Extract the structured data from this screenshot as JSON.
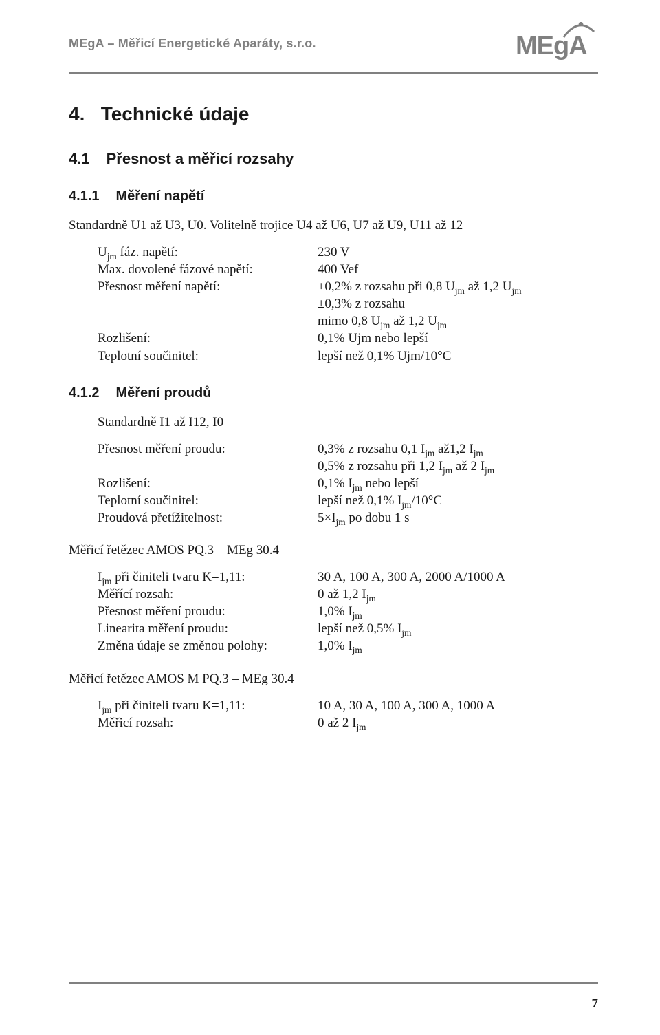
{
  "header": {
    "company": "MEgA – Měřicí Energetické Aparáty, s.r.o.",
    "logo_text": "MEgA",
    "color_gray": "#808080"
  },
  "h2": {
    "num": "4.",
    "title": "Technické údaje"
  },
  "h3": {
    "num": "4.1",
    "title": "Přesnost a měřicí rozsahy"
  },
  "s411": {
    "num": "4.1.1",
    "title": "Měření napětí",
    "intro": "Standardně U1 až U3, U0. Volitelně trojice U4 až U6, U7 až U9, U11 až 12",
    "rows": {
      "r1l": "U<sub>jm</sub> fáz. napětí:",
      "r1v": "230 V",
      "r2l": "Max. dovolené fázové napětí:",
      "r2v": "400 Vef",
      "r3l": "Přesnost měření napětí:",
      "r3v": "±0,2% z rozsahu při 0,8 U<sub>jm</sub> až 1,2 U<sub>jm</sub>",
      "r4v": "±0,3% z rozsahu",
      "r5v": "mimo 0,8 U<sub>jm</sub> až 1,2 U<sub>jm</sub>",
      "r6l": "Rozlišení:",
      "r6v": "0,1% Ujm nebo lepší",
      "r7l": "Teplotní součinitel:",
      "r7v": "lepší než 0,1% Ujm/10°C"
    }
  },
  "s412": {
    "num": "4.1.2",
    "title": "Měření proudů",
    "intro": "Standardně I1 až I12, I0",
    "rows": {
      "r1l": "Přesnost měření proudu:",
      "r1v": "0,3% z rozsahu 0,1 I<sub>jm</sub> až1,2 I<sub>jm</sub>",
      "r2v": "0,5% z rozsahu při 1,2 I<sub>jm</sub> až 2 I<sub>jm</sub>",
      "r3l": "Rozlišení:",
      "r3v": "0,1% I<sub>jm</sub> nebo lepší",
      "r4l": "Teplotní součinitel:",
      "r4v": "lepší než 0,1% I<sub>jm</sub>/10°C",
      "r5l": "Proudová přetížitelnost:",
      "r5v": "5×I<sub>jm</sub> po dobu 1 s"
    }
  },
  "chainA": {
    "title": "Měřicí řetězec AMOS PQ.3 – MEg 30.4",
    "rows": {
      "r1l": "I<sub>jm</sub> při činiteli tvaru K=1,11:",
      "r1v": "30 A, 100 A, 300 A, 2000 A/1000 A",
      "r2l": "Měřící rozsah:",
      "r2v": "0 až 1,2 I<sub>jm</sub>",
      "r3l": "Přesnost měření proudu:",
      "r3v": "1,0% I<sub>jm</sub>",
      "r4l": "Linearita měření proudu:",
      "r4v": "lepší než 0,5% I<sub>jm</sub>",
      "r5l": "Změna údaje se změnou polohy:",
      "r5v": "1,0% I<sub>jm</sub>"
    }
  },
  "chainB": {
    "title": "Měřicí řetězec AMOS M PQ.3 – MEg 30.4",
    "rows": {
      "r1l": "I<sub>jm</sub> při činiteli tvaru K=1,11:",
      "r1v": "10 A, 30 A, 100 A, 300 A, 1000 A",
      "r2l": "Měřicí rozsah:",
      "r2v": "0 až 2 I<sub>jm</sub>"
    }
  },
  "page_number": "7"
}
